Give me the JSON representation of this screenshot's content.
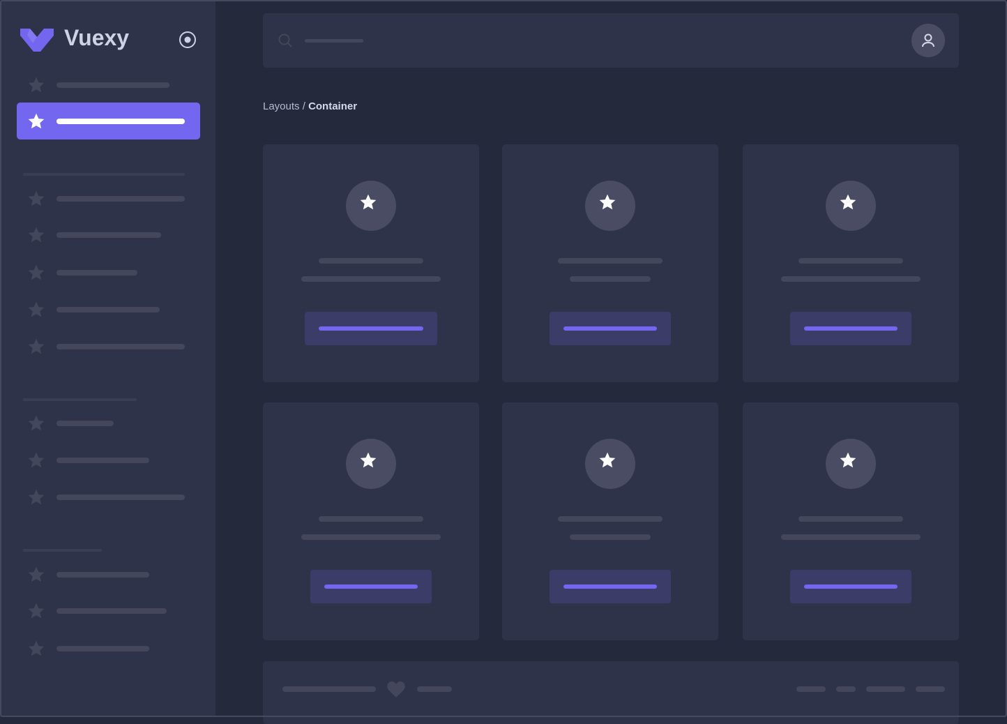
{
  "brand": {
    "name": "Vuexy",
    "accent": "#7367f0"
  },
  "sidebar": {
    "toggle_icon": "radio-circle-icon",
    "item_icon": "star-icon",
    "active_index": 1
  },
  "header": {
    "search_icon": "search-icon",
    "avatar_icon": "user-icon"
  },
  "breadcrumb": {
    "parent": "Layouts",
    "separator": "/",
    "current": "Container"
  },
  "cards": {
    "count": 6,
    "icon": "star-icon"
  },
  "footer": {
    "icon": "heart-icon"
  }
}
